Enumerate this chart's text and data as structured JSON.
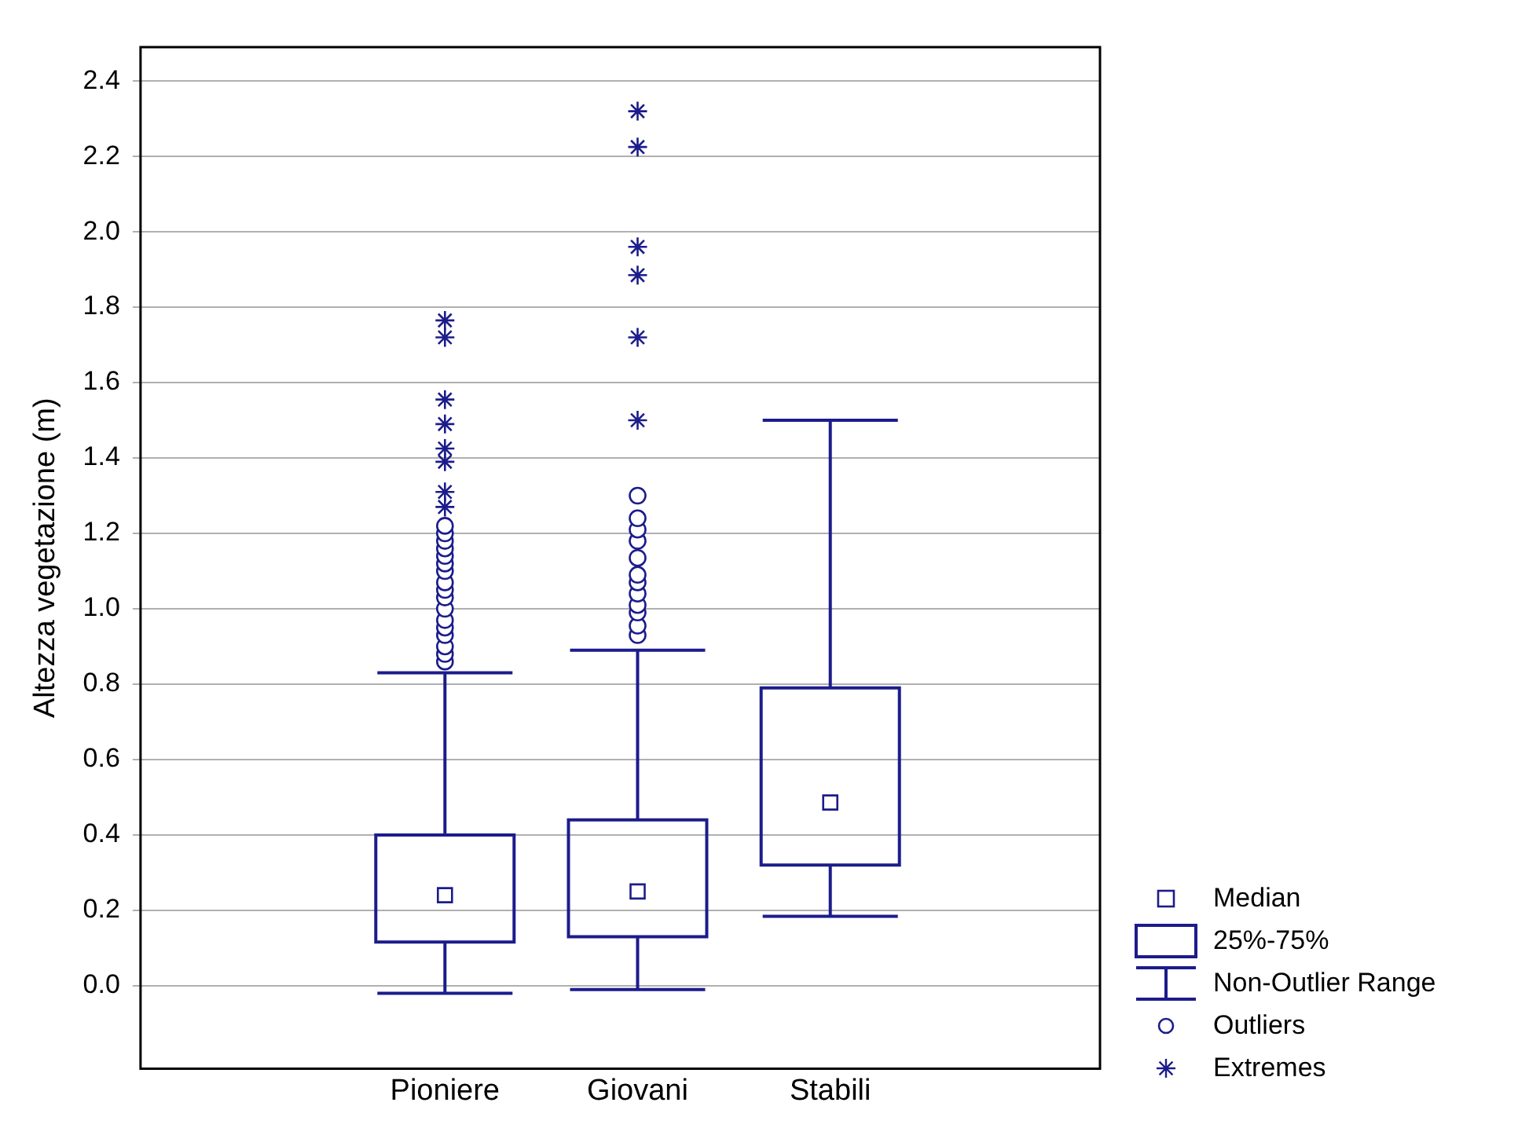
{
  "chart_data": {
    "type": "box",
    "ylabel": "Altezza vegetazione (m)",
    "categories": [
      "Pioniere",
      "Giovani",
      "Stabili"
    ],
    "ylim": [
      -0.22,
      2.49
    ],
    "yticks": [
      {
        "value": 0,
        "label": "0.0"
      },
      0.2,
      0.4,
      0.6,
      0.8,
      {
        "value": 1,
        "label": "1.0"
      },
      1.2,
      1.4,
      1.6,
      1.8,
      {
        "value": 2,
        "label": "2.0"
      },
      2.2,
      2.4
    ],
    "grid": "y",
    "annotations": [
      "Median",
      "25%-75%",
      "Non-Outlier Range",
      "Outliers",
      "Extremes"
    ],
    "series": [
      {
        "color": "#1c1c8c",
        "marker": "circle",
        "boxes": [
          {
            "low": -0.02,
            "q1": 0.116,
            "median": 0.24,
            "q3": 0.4,
            "high": 0.83,
            "outliers": [
              0.86,
              0.88,
              0.9,
              0.93,
              0.95,
              0.97,
              1.0,
              1.03,
              1.05,
              1.07,
              1.1,
              1.12,
              1.14,
              1.16,
              1.18,
              1.2,
              1.22
            ]
          },
          {
            "low": -0.01,
            "q1": 0.13,
            "median": 0.25,
            "q3": 0.44,
            "high": 0.89,
            "outliers": [
              0.93,
              0.955,
              0.99,
              1.01,
              1.04,
              1.07,
              1.09,
              1.135,
              1.18,
              1.21,
              1.24,
              1.3
            ]
          },
          {
            "low": 0.184,
            "q1": 0.32,
            "median": 0.486,
            "q3": 0.79,
            "high": 1.5
          }
        ]
      },
      {
        "type": "scatter",
        "color": "#1c1c8c",
        "marker": "cross",
        "x": [
          "Pioniere",
          "Pioniere",
          "Pioniere",
          "Pioniere",
          "Pioniere",
          "Pioniere",
          "Pioniere",
          "Pioniere",
          "Giovani",
          "Giovani",
          "Giovani",
          "Giovani",
          "Giovani",
          "Giovani"
        ],
        "values": [
          1.27,
          1.31,
          1.39,
          1.425,
          1.49,
          1.555,
          1.72,
          1.765,
          1.5,
          1.72,
          1.885,
          1.96,
          2.225,
          2.32
        ]
      }
    ]
  }
}
